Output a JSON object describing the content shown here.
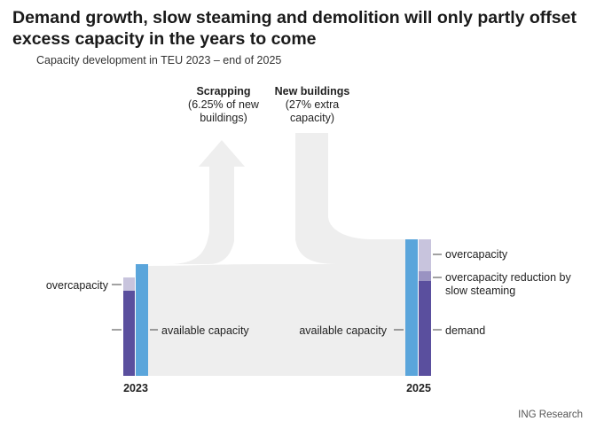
{
  "chart_data": {
    "type": "sankey",
    "title": "Demand growth, slow steaming and demolition will only partly offset excess capacity in the years to come",
    "subtitle": "Capacity development in TEU 2023 – end of 2025",
    "flows": {
      "scrapping": {
        "label_line1": "Scrapping",
        "label_line2": "(6.25% of new",
        "label_line3": "buildings)",
        "pct_of_new_buildings": 6.25
      },
      "new_buildings": {
        "label_line1": "New buildings",
        "label_line2": "(27% extra",
        "label_line3": "capacity)",
        "pct_extra_capacity": 27
      }
    },
    "bars": [
      {
        "year": "2023",
        "available_capacity_label": "available capacity",
        "segments": [
          {
            "key": "demand",
            "label": ""
          },
          {
            "key": "overcapacity",
            "label": "overcapacity"
          }
        ]
      },
      {
        "year": "2025",
        "available_capacity_label": "available capacity",
        "segments": [
          {
            "key": "demand",
            "label": "demand"
          },
          {
            "key": "slow_steaming",
            "label_line1": "overcapacity reduction by",
            "label_line2": "slow steaming"
          },
          {
            "key": "overcapacity",
            "label": "overcapacity"
          }
        ]
      }
    ],
    "colors": {
      "demand": "#5a4f9e",
      "overcapacity": "#c8c4dd",
      "slow_steaming": "#9a93c2",
      "available": "#5aa5db",
      "flow": "#eeeeee"
    }
  },
  "source": "ING Research"
}
